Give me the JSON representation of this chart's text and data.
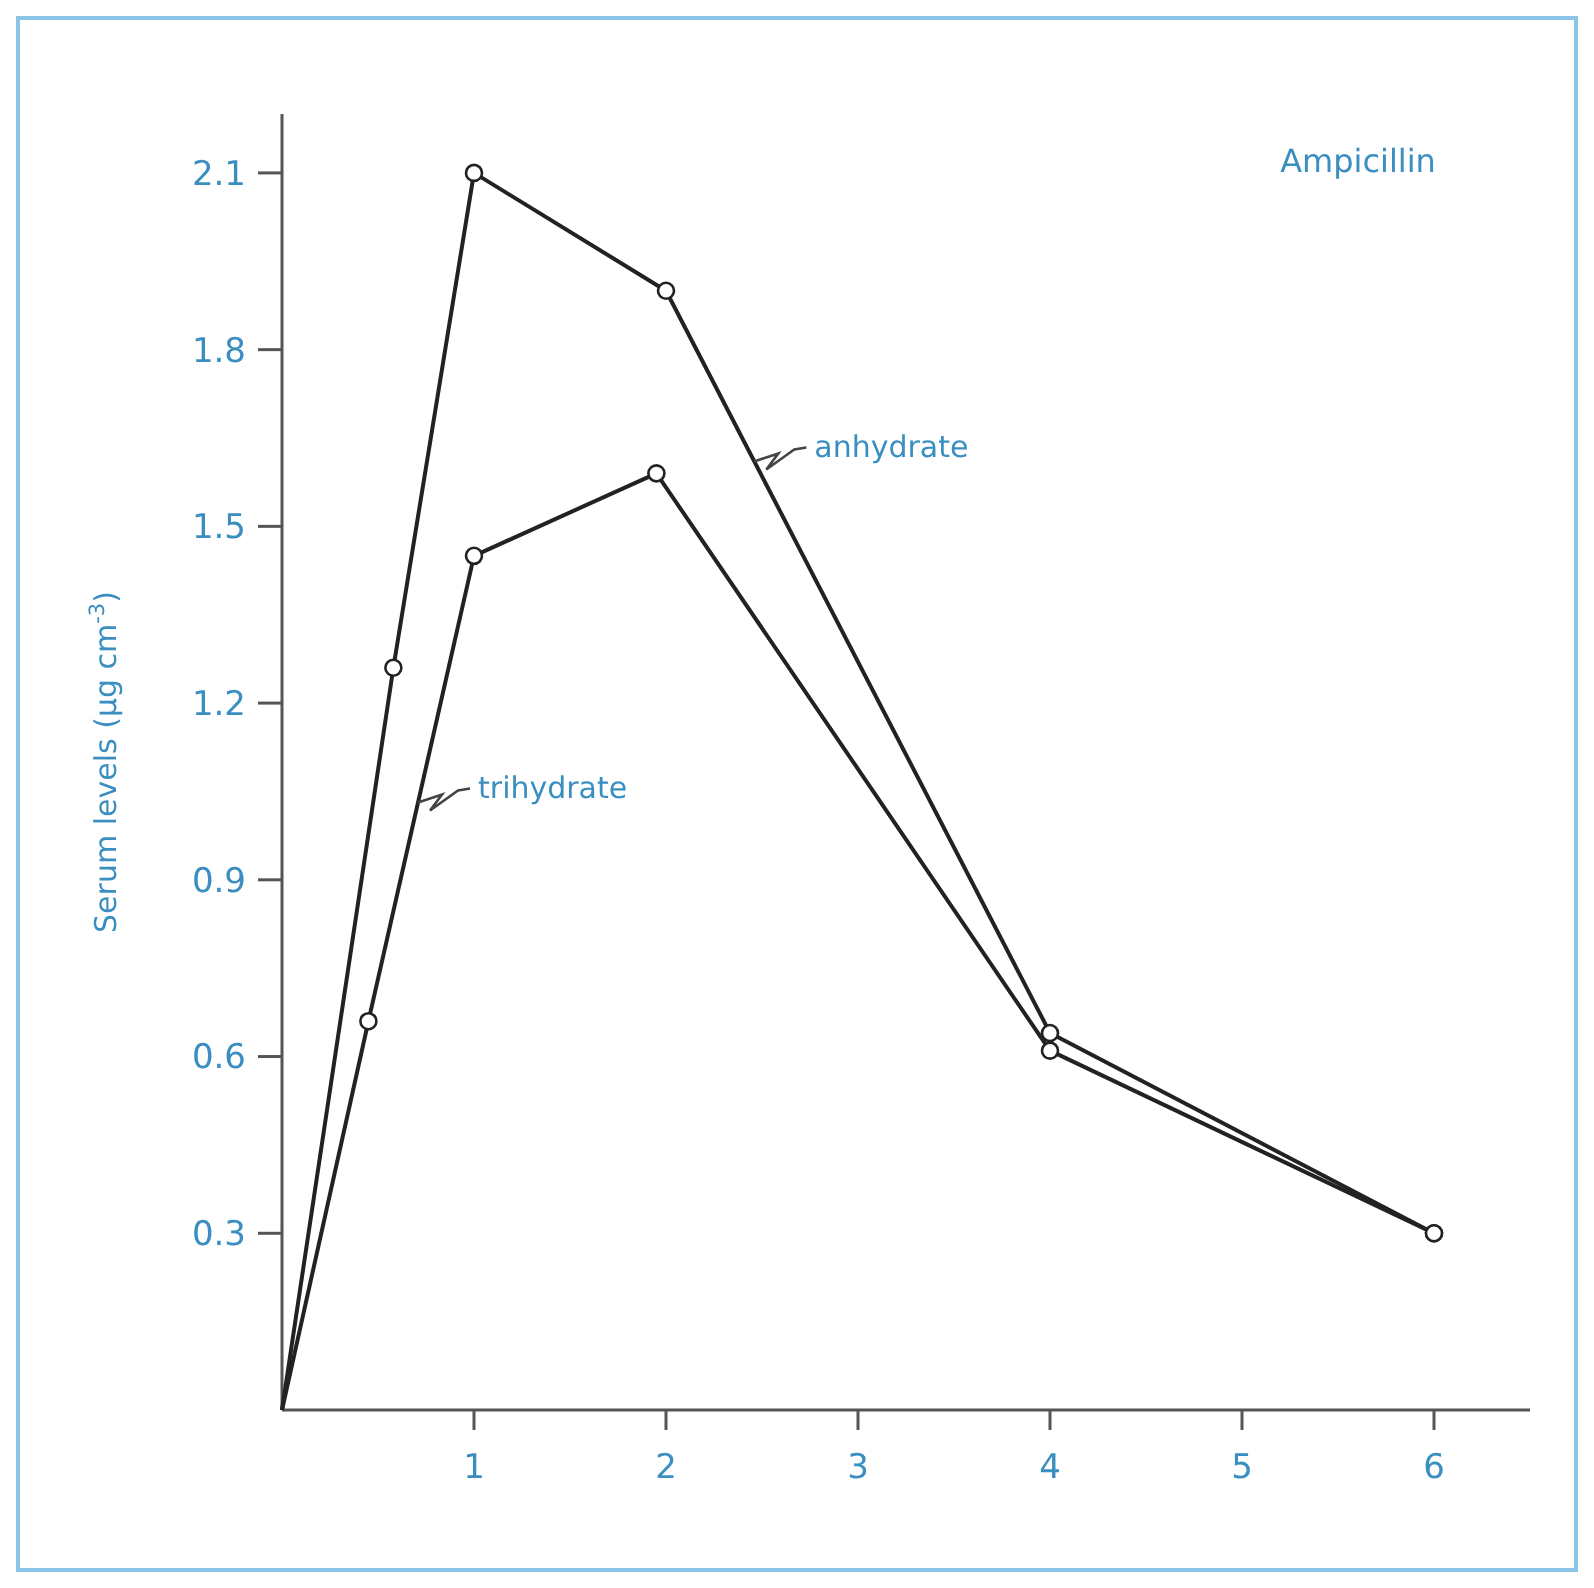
{
  "chart_data": {
    "type": "line",
    "title": "Ampicillin",
    "ylabel": "Serum levels (μg cm$^{-3}$)",
    "xlim": [
      0,
      6.5
    ],
    "xticks": [
      1,
      2,
      3,
      4,
      5,
      6
    ],
    "ylim": [
      0,
      2.2
    ],
    "yticks": [
      0.3,
      0.6,
      0.9,
      1.2,
      1.5,
      1.8,
      2.1
    ],
    "marker": "circle",
    "grid": false,
    "series": [
      {
        "name": "anhydrate",
        "color": "#222222",
        "x": [
          0,
          0.58,
          1,
          2,
          4,
          6
        ],
        "values": [
          0,
          1.26,
          2.1,
          1.9,
          0.64,
          0.3
        ]
      },
      {
        "name": "trihydrate",
        "color": "#222222",
        "x": [
          0,
          0.45,
          1,
          1.95,
          4,
          6
        ],
        "values": [
          0,
          0.66,
          1.45,
          1.59,
          0.61,
          0.3
        ]
      }
    ]
  }
}
